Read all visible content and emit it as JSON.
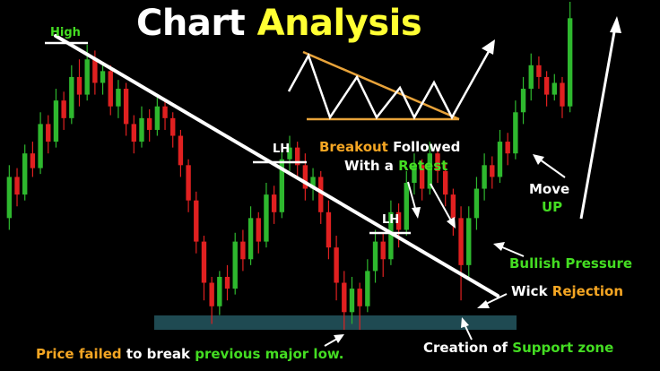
{
  "title": {
    "part1": "Chart",
    "part2": "Analysis"
  },
  "colors": {
    "background": "#000000",
    "bull_candle": "#2eb82e",
    "bear_candle": "#e02020",
    "support_zone": "#1f4a52",
    "trendline": "#ffffff",
    "triangle_upper": "#e8a33a",
    "title_accent": "#ffff33",
    "label_green": "#44dd22",
    "label_orange": "#f5a623"
  },
  "labels": {
    "high": "High",
    "lh1": "LH",
    "lh2": "LH",
    "breakout_1": "Breakout",
    "breakout_2": "Followed",
    "breakout_3": "With a",
    "breakout_4": "Retest",
    "move": "Move",
    "up": "UP",
    "bullish": "Bullish Pressure",
    "wick_1": "Wick",
    "wick_2": "Rejection",
    "price_1": "Price failed",
    "price_2": "to break",
    "price_3": "previous major low.",
    "creation_1": "Creation of",
    "creation_2": "Support zone"
  },
  "chart_data": {
    "type": "candlestick",
    "title": "Chart Analysis",
    "ylim": [
      0,
      100
    ],
    "candles": [
      {
        "o": 38,
        "c": 52,
        "h": 56,
        "l": 34
      },
      {
        "o": 52,
        "c": 46,
        "h": 55,
        "l": 42
      },
      {
        "o": 46,
        "c": 60,
        "h": 63,
        "l": 44
      },
      {
        "o": 60,
        "c": 55,
        "h": 64,
        "l": 52
      },
      {
        "o": 55,
        "c": 70,
        "h": 74,
        "l": 53
      },
      {
        "o": 70,
        "c": 64,
        "h": 73,
        "l": 60
      },
      {
        "o": 64,
        "c": 78,
        "h": 82,
        "l": 62
      },
      {
        "o": 78,
        "c": 72,
        "h": 81,
        "l": 68
      },
      {
        "o": 72,
        "c": 86,
        "h": 90,
        "l": 70
      },
      {
        "o": 86,
        "c": 80,
        "h": 92,
        "l": 76
      },
      {
        "o": 80,
        "c": 92,
        "h": 97,
        "l": 78
      },
      {
        "o": 92,
        "c": 84,
        "h": 95,
        "l": 80
      },
      {
        "o": 84,
        "c": 88,
        "h": 91,
        "l": 80
      },
      {
        "o": 88,
        "c": 76,
        "h": 90,
        "l": 73
      },
      {
        "o": 76,
        "c": 82,
        "h": 85,
        "l": 72
      },
      {
        "o": 82,
        "c": 70,
        "h": 84,
        "l": 66
      },
      {
        "o": 70,
        "c": 64,
        "h": 73,
        "l": 60
      },
      {
        "o": 64,
        "c": 72,
        "h": 76,
        "l": 62
      },
      {
        "o": 72,
        "c": 68,
        "h": 75,
        "l": 64
      },
      {
        "o": 68,
        "c": 76,
        "h": 79,
        "l": 66
      },
      {
        "o": 76,
        "c": 72,
        "h": 78,
        "l": 68
      },
      {
        "o": 72,
        "c": 66,
        "h": 74,
        "l": 62
      },
      {
        "o": 66,
        "c": 56,
        "h": 68,
        "l": 52
      },
      {
        "o": 56,
        "c": 44,
        "h": 58,
        "l": 40
      },
      {
        "o": 44,
        "c": 30,
        "h": 47,
        "l": 26
      },
      {
        "o": 30,
        "c": 16,
        "h": 32,
        "l": 10
      },
      {
        "o": 16,
        "c": 8,
        "h": 18,
        "l": 2
      },
      {
        "o": 8,
        "c": 18,
        "h": 20,
        "l": 5
      },
      {
        "o": 18,
        "c": 14,
        "h": 22,
        "l": 10
      },
      {
        "o": 14,
        "c": 30,
        "h": 33,
        "l": 12
      },
      {
        "o": 30,
        "c": 24,
        "h": 34,
        "l": 20
      },
      {
        "o": 24,
        "c": 38,
        "h": 42,
        "l": 22
      },
      {
        "o": 38,
        "c": 30,
        "h": 40,
        "l": 26
      },
      {
        "o": 30,
        "c": 46,
        "h": 50,
        "l": 28
      },
      {
        "o": 46,
        "c": 40,
        "h": 49,
        "l": 36
      },
      {
        "o": 40,
        "c": 58,
        "h": 62,
        "l": 38
      },
      {
        "o": 58,
        "c": 62,
        "h": 66,
        "l": 54
      },
      {
        "o": 62,
        "c": 56,
        "h": 64,
        "l": 52
      },
      {
        "o": 56,
        "c": 48,
        "h": 60,
        "l": 44
      },
      {
        "o": 48,
        "c": 52,
        "h": 55,
        "l": 44
      },
      {
        "o": 52,
        "c": 40,
        "h": 54,
        "l": 36
      },
      {
        "o": 40,
        "c": 28,
        "h": 44,
        "l": 24
      },
      {
        "o": 28,
        "c": 16,
        "h": 32,
        "l": 10
      },
      {
        "o": 16,
        "c": 6,
        "h": 20,
        "l": 0
      },
      {
        "o": 6,
        "c": 14,
        "h": 18,
        "l": 2
      },
      {
        "o": 14,
        "c": 8,
        "h": 16,
        "l": 0
      },
      {
        "o": 8,
        "c": 20,
        "h": 24,
        "l": 6
      },
      {
        "o": 20,
        "c": 30,
        "h": 34,
        "l": 16
      },
      {
        "o": 30,
        "c": 24,
        "h": 33,
        "l": 18
      },
      {
        "o": 24,
        "c": 40,
        "h": 44,
        "l": 22
      },
      {
        "o": 40,
        "c": 34,
        "h": 43,
        "l": 28
      },
      {
        "o": 34,
        "c": 50,
        "h": 54,
        "l": 32
      },
      {
        "o": 50,
        "c": 56,
        "h": 60,
        "l": 46
      },
      {
        "o": 56,
        "c": 48,
        "h": 58,
        "l": 44
      },
      {
        "o": 48,
        "c": 60,
        "h": 64,
        "l": 46
      },
      {
        "o": 60,
        "c": 54,
        "h": 62,
        "l": 50
      },
      {
        "o": 54,
        "c": 46,
        "h": 57,
        "l": 42
      },
      {
        "o": 46,
        "c": 38,
        "h": 48,
        "l": 32
      },
      {
        "o": 38,
        "c": 22,
        "h": 42,
        "l": 10
      },
      {
        "o": 22,
        "c": 38,
        "h": 42,
        "l": 18
      },
      {
        "o": 38,
        "c": 48,
        "h": 52,
        "l": 34
      },
      {
        "o": 48,
        "c": 56,
        "h": 60,
        "l": 44
      },
      {
        "o": 56,
        "c": 52,
        "h": 59,
        "l": 48
      },
      {
        "o": 52,
        "c": 64,
        "h": 68,
        "l": 50
      },
      {
        "o": 64,
        "c": 60,
        "h": 67,
        "l": 56
      },
      {
        "o": 60,
        "c": 74,
        "h": 78,
        "l": 58
      },
      {
        "o": 74,
        "c": 82,
        "h": 86,
        "l": 70
      },
      {
        "o": 82,
        "c": 90,
        "h": 94,
        "l": 78
      },
      {
        "o": 90,
        "c": 86,
        "h": 93,
        "l": 82
      },
      {
        "o": 86,
        "c": 80,
        "h": 88,
        "l": 76
      },
      {
        "o": 80,
        "c": 84,
        "h": 87,
        "l": 78
      },
      {
        "o": 84,
        "c": 76,
        "h": 86,
        "l": 72
      },
      {
        "o": 76,
        "c": 106,
        "h": 122,
        "l": 74
      }
    ]
  }
}
